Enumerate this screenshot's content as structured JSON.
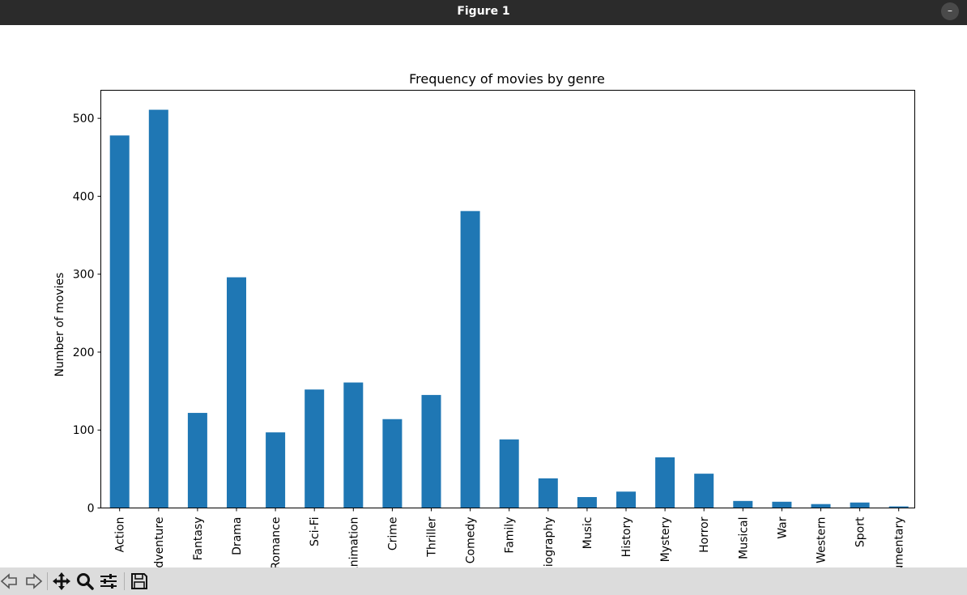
{
  "window": {
    "title": "Figure 1",
    "minimize_label": "–"
  },
  "toolbar": {
    "buttons": [
      {
        "name": "back-button",
        "icon": "back-arrow-icon"
      },
      {
        "name": "forward-button",
        "icon": "forward-arrow-icon"
      },
      {
        "name": "pan-button",
        "icon": "move-icon"
      },
      {
        "name": "zoom-button",
        "icon": "magnifier-icon"
      },
      {
        "name": "configure-subplots-button",
        "icon": "sliders-icon"
      },
      {
        "name": "save-button",
        "icon": "floppy-disk-icon"
      }
    ]
  },
  "chart_data": {
    "type": "bar",
    "title": "Frequency of movies by genre",
    "xlabel": "",
    "ylabel": "Number of movies",
    "categories": [
      "Action",
      "Adventure",
      "Fantasy",
      "Drama",
      "Romance",
      "Sci-Fi",
      "Animation",
      "Crime",
      "Thriller",
      "Comedy",
      "Family",
      "Biography",
      "Music",
      "History",
      "Mystery",
      "Horror",
      "Musical",
      "War",
      "Western",
      "Sport",
      "Documentary"
    ],
    "values": [
      478,
      511,
      122,
      296,
      97,
      152,
      161,
      114,
      145,
      381,
      88,
      38,
      14,
      21,
      65,
      44,
      9,
      8,
      5,
      7,
      2
    ],
    "ylim": [
      0,
      536
    ],
    "yticks": [
      0,
      100,
      200,
      300,
      400,
      500
    ],
    "grid": false,
    "bar_color": "#1f77b4"
  }
}
